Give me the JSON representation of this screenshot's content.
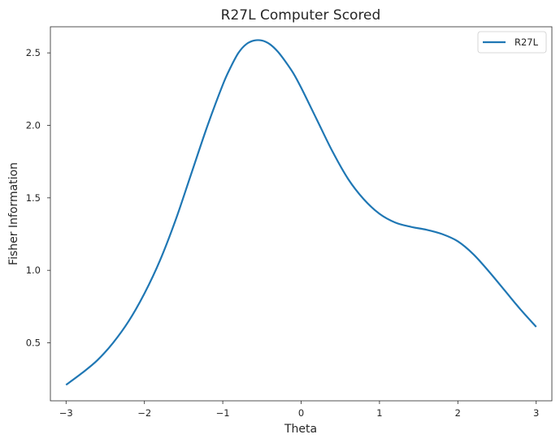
{
  "chart_data": {
    "type": "line",
    "title": "R27L Computer Scored",
    "xlabel": "Theta",
    "ylabel": "Fisher Information",
    "xlim": [
      -3.2,
      3.2
    ],
    "ylim": [
      0.1,
      2.68
    ],
    "xticks": [
      -3,
      -2,
      -1,
      0,
      1,
      2,
      3
    ],
    "xtick_labels": [
      "−3",
      "−2",
      "−1",
      "0",
      "1",
      "2",
      "3"
    ],
    "yticks": [
      0.5,
      1.0,
      1.5,
      2.0,
      2.5
    ],
    "ytick_labels": [
      "0.5",
      "1.0",
      "1.5",
      "2.0",
      "2.5"
    ],
    "grid": false,
    "legend_position": "top-right",
    "series": [
      {
        "name": "R27L",
        "color": "#1f77b4",
        "x": [
          -3.0,
          -2.8,
          -2.6,
          -2.4,
          -2.2,
          -2.0,
          -1.8,
          -1.6,
          -1.4,
          -1.2,
          -1.0,
          -0.9,
          -0.8,
          -0.7,
          -0.6,
          -0.5,
          -0.4,
          -0.3,
          -0.2,
          -0.1,
          0.0,
          0.2,
          0.4,
          0.6,
          0.8,
          1.0,
          1.2,
          1.4,
          1.6,
          1.8,
          2.0,
          2.2,
          2.4,
          2.6,
          2.8,
          3.0
        ],
        "y": [
          0.21,
          0.29,
          0.38,
          0.5,
          0.65,
          0.84,
          1.07,
          1.35,
          1.67,
          1.99,
          2.28,
          2.4,
          2.5,
          2.56,
          2.585,
          2.585,
          2.56,
          2.51,
          2.44,
          2.36,
          2.26,
          2.04,
          1.82,
          1.63,
          1.49,
          1.39,
          1.33,
          1.3,
          1.28,
          1.25,
          1.2,
          1.11,
          0.99,
          0.86,
          0.73,
          0.61
        ]
      }
    ]
  }
}
